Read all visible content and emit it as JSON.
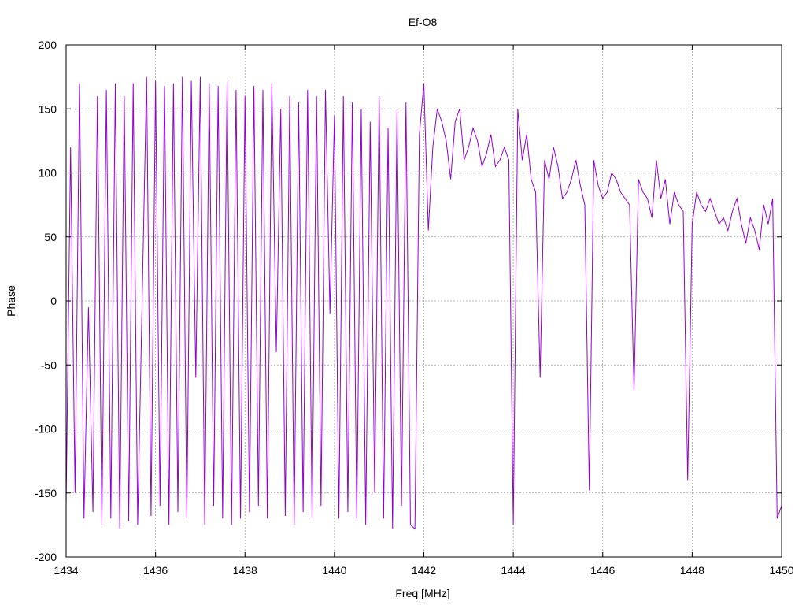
{
  "chart_data": {
    "type": "line",
    "title": "Ef-O8",
    "xlabel": "Freq [MHz]",
    "ylabel": "Phase",
    "xlim": [
      1434,
      1450
    ],
    "ylim": [
      -200,
      200
    ],
    "x_ticks": [
      1434,
      1436,
      1438,
      1440,
      1442,
      1444,
      1446,
      1448,
      1450
    ],
    "y_ticks": [
      -200,
      -150,
      -100,
      -50,
      0,
      50,
      100,
      150,
      200
    ],
    "grid": true,
    "legend": "none",
    "colors": {
      "series": "#9400d3",
      "grid": "#a0a0a0",
      "axis": "#000000"
    },
    "series": [
      {
        "x": [
          1434.0,
          1434.1,
          1434.2,
          1434.3,
          1434.4,
          1434.5,
          1434.6,
          1434.7,
          1434.8,
          1434.9,
          1435.0,
          1435.1,
          1435.2,
          1435.3,
          1435.4,
          1435.5,
          1435.6,
          1435.7,
          1435.8,
          1435.9,
          1436.0,
          1436.1,
          1436.2,
          1436.3,
          1436.4,
          1436.5,
          1436.6,
          1436.7,
          1436.8,
          1436.9,
          1437.0,
          1437.1,
          1437.2,
          1437.3,
          1437.4,
          1437.5,
          1437.6,
          1437.7,
          1437.8,
          1437.9,
          1438.0,
          1438.1,
          1438.2,
          1438.3,
          1438.4,
          1438.5,
          1438.6,
          1438.7,
          1438.8,
          1438.9,
          1439.0,
          1439.1,
          1439.2,
          1439.3,
          1439.4,
          1439.5,
          1439.6,
          1439.7,
          1439.8,
          1439.9,
          1440.0,
          1440.1,
          1440.2,
          1440.3,
          1440.4,
          1440.5,
          1440.6,
          1440.7,
          1440.8,
          1440.9,
          1441.0,
          1441.1,
          1441.2,
          1441.3,
          1441.4,
          1441.5,
          1441.6,
          1441.7,
          1441.8,
          1441.9,
          1442.0,
          1442.1,
          1442.2,
          1442.3,
          1442.4,
          1442.5,
          1442.6,
          1442.7,
          1442.8,
          1442.9,
          1443.0,
          1443.1,
          1443.2,
          1443.3,
          1443.4,
          1443.5,
          1443.6,
          1443.7,
          1443.8,
          1443.9,
          1444.0,
          1444.1,
          1444.2,
          1444.3,
          1444.4,
          1444.5,
          1444.6,
          1444.7,
          1444.8,
          1444.9,
          1445.0,
          1445.1,
          1445.2,
          1445.3,
          1445.4,
          1445.5,
          1445.6,
          1445.7,
          1445.8,
          1445.9,
          1446.0,
          1446.1,
          1446.2,
          1446.3,
          1446.4,
          1446.5,
          1446.6,
          1446.7,
          1446.8,
          1446.9,
          1447.0,
          1447.1,
          1447.2,
          1447.3,
          1447.4,
          1447.5,
          1447.6,
          1447.7,
          1447.8,
          1447.9,
          1448.0,
          1448.1,
          1448.2,
          1448.3,
          1448.4,
          1448.5,
          1448.6,
          1448.7,
          1448.8,
          1448.9,
          1449.0,
          1449.1,
          1449.2,
          1449.3,
          1449.4,
          1449.5,
          1449.6,
          1449.7,
          1449.8,
          1449.9,
          1450.0
        ],
        "y": [
          -160,
          120,
          -150,
          170,
          -170,
          -5,
          -165,
          160,
          -175,
          165,
          -170,
          170,
          -178,
          160,
          -172,
          170,
          -175,
          0,
          175,
          -168,
          172,
          -160,
          168,
          -175,
          170,
          -165,
          175,
          -170,
          172,
          -60,
          175,
          -175,
          170,
          -160,
          168,
          -170,
          172,
          -175,
          165,
          -170,
          160,
          -165,
          168,
          -160,
          165,
          -170,
          170,
          -40,
          150,
          -168,
          160,
          -175,
          155,
          -165,
          165,
          -170,
          160,
          -160,
          165,
          -10,
          145,
          -170,
          160,
          -165,
          155,
          -170,
          150,
          -175,
          140,
          -150,
          160,
          -170,
          135,
          -178,
          150,
          -160,
          155,
          -175,
          -178,
          130,
          170,
          55,
          120,
          150,
          140,
          125,
          95,
          140,
          150,
          110,
          120,
          135,
          125,
          105,
          115,
          130,
          105,
          110,
          120,
          110,
          -175,
          150,
          110,
          130,
          95,
          85,
          -60,
          110,
          95,
          120,
          105,
          80,
          85,
          95,
          110,
          90,
          75,
          -148,
          110,
          90,
          80,
          85,
          100,
          95,
          85,
          80,
          75,
          -70,
          95,
          85,
          80,
          65,
          110,
          80,
          95,
          60,
          85,
          75,
          70,
          -140,
          60,
          85,
          75,
          70,
          80,
          70,
          60,
          65,
          55,
          70,
          80,
          60,
          45,
          65,
          55,
          40,
          75,
          60,
          80,
          -170,
          -160
        ]
      }
    ]
  }
}
